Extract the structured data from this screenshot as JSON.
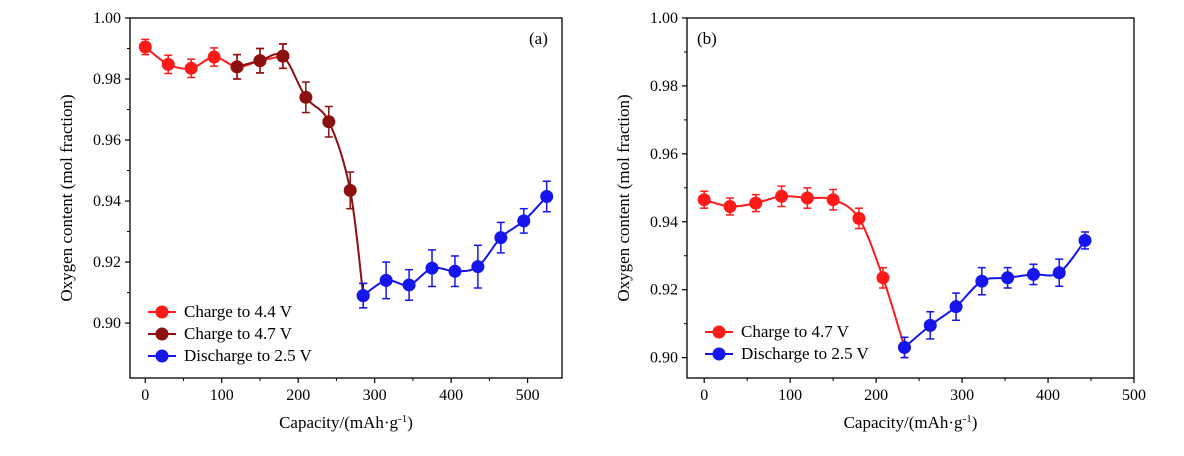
{
  "chart_data": [
    {
      "type": "line",
      "panel_label": "(a)",
      "xlabel": "Capacity/(mAh·g",
      "xlabel_sup": "-1",
      "xlabel_end": ")",
      "ylabel": "Oxygen content (mol fraction)",
      "xlim": [
        -20,
        545
      ],
      "ylim": [
        0.882,
        1.0
      ],
      "xticks": [
        "0",
        "100",
        "200",
        "300",
        "400",
        "500"
      ],
      "yticks": [
        "0.90",
        "0.92",
        "0.94",
        "0.96",
        "0.98",
        "1.00"
      ],
      "legend_position": "bottom-left",
      "series": [
        {
          "name": "Charge to 4.4 V",
          "color": "#ff1a1a",
          "x": [
            0,
            30,
            60,
            90,
            120,
            150,
            180
          ],
          "y": [
            0.9905,
            0.9848,
            0.9835,
            0.9872,
            0.984,
            0.986,
            0.9875
          ],
          "err": [
            0.0025,
            0.003,
            0.003,
            0.003,
            0.004,
            0.004,
            0.004
          ]
        },
        {
          "name": "Charge to 4.7 V",
          "color": "#8b1010",
          "x": [
            120,
            150,
            180,
            210,
            240,
            268,
            285
          ],
          "y": [
            0.984,
            0.986,
            0.9875,
            0.974,
            0.966,
            0.9435,
            0.909
          ],
          "err": [
            0.004,
            0.004,
            0.004,
            0.005,
            0.005,
            0.006,
            0.004
          ]
        },
        {
          "name": "Discharge to 2.5 V",
          "color": "#1515ee",
          "x": [
            285,
            315,
            345,
            375,
            405,
            435,
            465,
            495,
            525
          ],
          "y": [
            0.909,
            0.914,
            0.9125,
            0.918,
            0.917,
            0.9185,
            0.928,
            0.9335,
            0.9415
          ],
          "err": [
            0.004,
            0.006,
            0.005,
            0.006,
            0.005,
            0.007,
            0.005,
            0.004,
            0.005
          ]
        }
      ]
    },
    {
      "type": "line",
      "panel_label": "(b)",
      "xlabel": "Capacity/(mAh·g",
      "xlabel_sup": "-1",
      "xlabel_end": ")",
      "ylabel": "Oxygen content (mol fraction)",
      "xlim": [
        -20,
        500
      ],
      "ylim": [
        0.894,
        1.0
      ],
      "xticks": [
        "0",
        "100",
        "200",
        "300",
        "400",
        "500"
      ],
      "yticks": [
        "0.90",
        "0.92",
        "0.94",
        "0.96",
        "0.98",
        "1.00"
      ],
      "legend_position": "bottom-left",
      "series": [
        {
          "name": "Charge to 4.7 V",
          "color": "#ff1a1a",
          "x": [
            0,
            30,
            60,
            90,
            120,
            150,
            180,
            208,
            233
          ],
          "y": [
            0.9465,
            0.9445,
            0.9455,
            0.9475,
            0.947,
            0.9465,
            0.941,
            0.9235,
            0.903
          ],
          "err": [
            0.0025,
            0.0025,
            0.0025,
            0.003,
            0.003,
            0.003,
            0.003,
            0.003,
            0.003
          ]
        },
        {
          "name": "Discharge to 2.5 V",
          "color": "#1515ee",
          "x": [
            233,
            263,
            293,
            323,
            353,
            383,
            413,
            443
          ],
          "y": [
            0.903,
            0.9095,
            0.915,
            0.9225,
            0.9235,
            0.9245,
            0.925,
            0.9345
          ],
          "err": [
            0.003,
            0.004,
            0.004,
            0.004,
            0.003,
            0.003,
            0.004,
            0.0025
          ]
        }
      ]
    }
  ]
}
